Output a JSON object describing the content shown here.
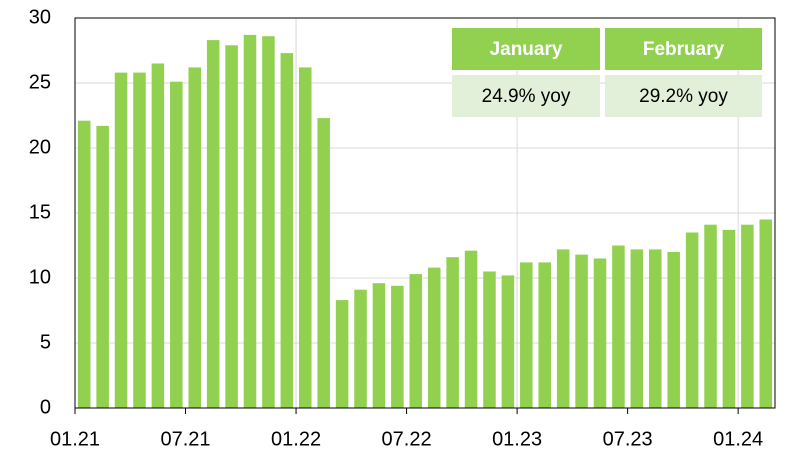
{
  "chart_data": {
    "type": "bar",
    "categories": [
      "01.21",
      null,
      null,
      null,
      null,
      null,
      "07.21",
      null,
      null,
      null,
      null,
      null,
      "01.22",
      null,
      null,
      null,
      null,
      null,
      "07.22",
      null,
      null,
      null,
      null,
      null,
      "01.23",
      null,
      null,
      null,
      null,
      null,
      "07.23",
      null,
      null,
      null,
      null,
      null,
      "01.24",
      null
    ],
    "values": [
      22.1,
      21.7,
      25.8,
      25.8,
      26.5,
      25.1,
      26.2,
      28.3,
      27.9,
      28.7,
      28.6,
      27.3,
      26.2,
      22.3,
      8.3,
      9.1,
      9.6,
      9.4,
      10.3,
      10.8,
      11.6,
      12.1,
      10.5,
      10.2,
      11.2,
      11.2,
      12.2,
      11.8,
      11.5,
      12.5,
      12.2,
      12.2,
      12.0,
      13.5,
      14.1,
      13.7,
      14.1,
      14.5
    ],
    "color": "#92d050",
    "ylim": [
      0,
      30
    ],
    "yticks": [
      0,
      5,
      10,
      15,
      20,
      25,
      30
    ],
    "grid": true,
    "table": {
      "columns": [
        "January",
        "February"
      ],
      "cells": [
        "24.9% yoy",
        "29.2% yoy"
      ]
    }
  }
}
